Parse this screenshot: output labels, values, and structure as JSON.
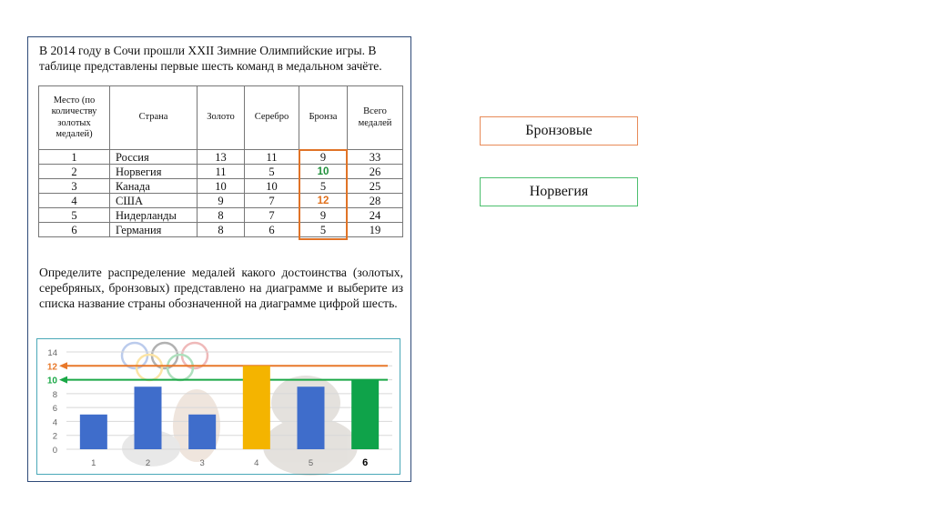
{
  "task": {
    "intro": "В 2014 году в Сочи прошли XXII Зимние Олимпийские игры. В таблице представлены первые шесть команд в медальном зачёте.",
    "question": "Определите распределение медалей какого достоинства (золотых, серебряных, бронзовых) представлено на диаграмме и выберите из списка название страны обозначенной на диаграмме цифрой шесть."
  },
  "table": {
    "headers": [
      "Место (по количеству золотых медалей)",
      "Страна",
      "Золото",
      "Серебро",
      "Бронза",
      "Всего медалей"
    ],
    "rows": [
      [
        "1",
        "Россия",
        "13",
        "11",
        "9",
        "33"
      ],
      [
        "2",
        "Норвегия",
        "11",
        "5",
        "10",
        "26"
      ],
      [
        "3",
        "Канада",
        "10",
        "10",
        "5",
        "25"
      ],
      [
        "4",
        "США",
        "9",
        "7",
        "12",
        "28"
      ],
      [
        "5",
        "Нидерланды",
        "8",
        "7",
        "9",
        "24"
      ],
      [
        "6",
        "Германия",
        "8",
        "6",
        "5",
        "19"
      ]
    ]
  },
  "chart_data": {
    "type": "bar",
    "categories": [
      "1",
      "2",
      "3",
      "4",
      "5",
      "6"
    ],
    "values": [
      5,
      9,
      5,
      12,
      9,
      10
    ],
    "ylim": [
      0,
      14
    ],
    "yticks": [
      "0",
      "2",
      "4",
      "6",
      "8",
      "10",
      "12",
      "14"
    ],
    "highlight_tick_labels": [
      "12",
      "10"
    ],
    "reference_lines": [
      {
        "value": 12,
        "color": "#e8782a"
      },
      {
        "value": 10,
        "color": "#1aa846"
      }
    ],
    "bar_colors": [
      "#3f6dcb",
      "#3f6dcb",
      "#3f6dcb",
      "#f4b400",
      "#3f6dcb",
      "#0fa34a"
    ],
    "grid": true
  },
  "answers": {
    "medal_type": "Бронзовые",
    "country": "Норвегия"
  },
  "colors": {
    "highlight_orange": "#e07327",
    "highlight_green": "#1f8f3a"
  }
}
